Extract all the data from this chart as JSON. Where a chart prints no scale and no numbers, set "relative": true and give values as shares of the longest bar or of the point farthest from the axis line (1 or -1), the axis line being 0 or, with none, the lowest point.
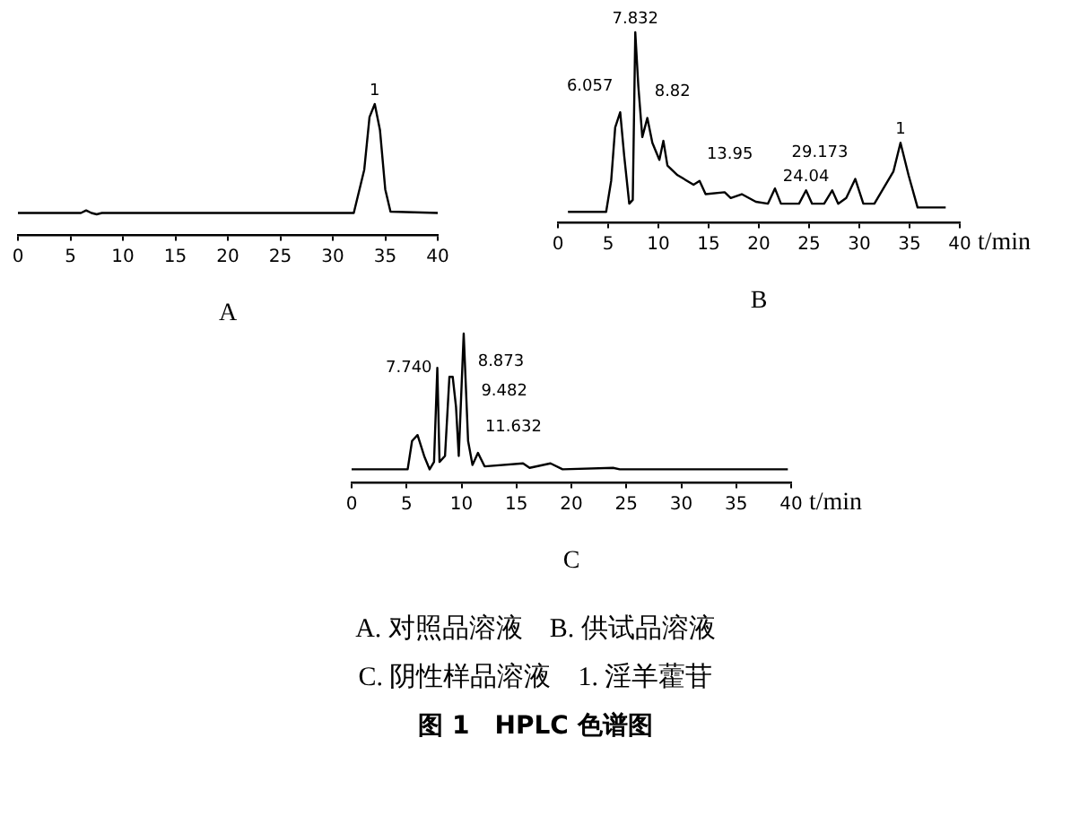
{
  "chart_data": [
    {
      "type": "line",
      "title": "A",
      "relative": true,
      "color": "#000000",
      "xlim": [
        0,
        40
      ],
      "xticks": [
        0,
        5,
        10,
        15,
        20,
        25,
        30,
        35,
        40
      ],
      "x": [
        0,
        6,
        6.5,
        7,
        7.5,
        8,
        32,
        33,
        33.5,
        34,
        34.5,
        35,
        35.5,
        40
      ],
      "values": [
        0.17,
        0.17,
        0.19,
        0.17,
        0.16,
        0.17,
        0.17,
        0.5,
        0.9,
        1,
        0.8,
        0.35,
        0.18,
        0.17
      ],
      "annotations": [
        {
          "text": "1",
          "x": 34,
          "y": 1
        }
      ]
    },
    {
      "type": "line",
      "title": "B",
      "xlabel": "t/min",
      "relative": true,
      "color": "#000000",
      "xlim": [
        0,
        40
      ],
      "xticks": [
        0,
        5,
        10,
        15,
        20,
        25,
        30,
        35,
        40
      ],
      "x": [
        1,
        4.8,
        5.3,
        5.7,
        6.2,
        6.6,
        7.1,
        7.45,
        7.7,
        8,
        8.4,
        8.9,
        9.4,
        10.1,
        10.5,
        10.9,
        11.9,
        13.5,
        14.1,
        14.7,
        16.6,
        17.2,
        18.3,
        19.7,
        20.9,
        21.6,
        22.2,
        24,
        24.7,
        25.3,
        26.5,
        27.3,
        27.9,
        28.7,
        29.6,
        30.4,
        31.5,
        33.4,
        34.1,
        34.9,
        35.8,
        38.6
      ],
      "values": [
        0.057,
        0.057,
        0.22,
        0.5,
        0.58,
        0.35,
        0.1,
        0.12,
        1,
        0.72,
        0.45,
        0.55,
        0.42,
        0.33,
        0.43,
        0.3,
        0.25,
        0.2,
        0.22,
        0.15,
        0.16,
        0.13,
        0.15,
        0.11,
        0.1,
        0.18,
        0.1,
        0.1,
        0.17,
        0.1,
        0.1,
        0.17,
        0.1,
        0.13,
        0.23,
        0.1,
        0.1,
        0.27,
        0.42,
        0.25,
        0.08,
        0.08
      ],
      "annotations": [
        {
          "text": "6.057",
          "x": 6.2,
          "y": 0.58
        },
        {
          "text": "7.832",
          "x": 7.7,
          "y": 1
        },
        {
          "text": "8.82",
          "x": 8.9,
          "y": 0.55
        },
        {
          "text": "13.95",
          "x": 14.1,
          "y": 0.22
        },
        {
          "text": "24.04",
          "x": 24.7,
          "y": 0.17
        },
        {
          "text": "29.173",
          "x": 29.6,
          "y": 0.23
        },
        {
          "text": "1",
          "x": 34.1,
          "y": 0.42
        }
      ]
    },
    {
      "type": "line",
      "title": "C",
      "xlabel": "t/min",
      "relative": true,
      "color": "#000000",
      "xlim": [
        0,
        40
      ],
      "xticks": [
        0,
        5,
        10,
        15,
        20,
        25,
        30,
        35,
        40
      ],
      "x": [
        0,
        5.1,
        5.5,
        6,
        6.6,
        7.1,
        7.5,
        7.8,
        8,
        8.5,
        8.9,
        9.2,
        9.5,
        9.75,
        10.2,
        10.6,
        11,
        11.5,
        12.1,
        15.6,
        16.2,
        18.1,
        19.2,
        23.8,
        24.4,
        39.7
      ],
      "values": [
        0.09,
        0.09,
        0.28,
        0.32,
        0.18,
        0.09,
        0.14,
        0.77,
        0.14,
        0.18,
        0.71,
        0.71,
        0.51,
        0.18,
        1,
        0.28,
        0.12,
        0.2,
        0.11,
        0.13,
        0.1,
        0.13,
        0.09,
        0.1,
        0.09,
        0.09
      ],
      "annotations": [
        {
          "text": "7.740",
          "x": 7.8,
          "y": 0.77
        },
        {
          "text": "8.873",
          "x": 9.2,
          "y": 0.71
        },
        {
          "text": "9.482",
          "x": 9.5,
          "y": 0.51
        },
        {
          "text": "11.632",
          "x": 11.5,
          "y": 0.2
        }
      ]
    },
    {
      "type": "other",
      "title": "图 1　HPLC 色谱图",
      "annotations": [
        "A. 对照品溶液　B. 供试品溶液",
        "C. 阴性样品溶液　1. 淫羊藿苷"
      ]
    }
  ]
}
